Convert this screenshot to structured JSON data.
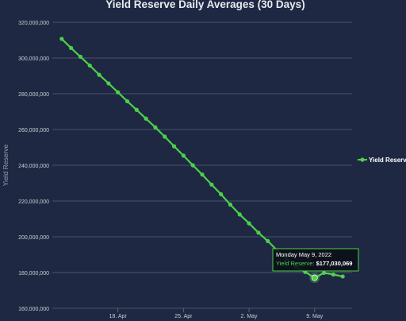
{
  "chart_data": {
    "type": "line",
    "title": "Yield Reserve Daily Averages (30 Days)",
    "ylabel": "Yield Reserve",
    "xlabel": "",
    "ylim": [
      160000000,
      320000000
    ],
    "yticks": [
      160000000,
      180000000,
      200000000,
      220000000,
      240000000,
      260000000,
      280000000,
      300000000,
      320000000
    ],
    "ytick_labels": [
      "160,000,000",
      "180,000,000",
      "200,000,000",
      "220,000,000",
      "240,000,000",
      "260,000,000",
      "280,000,000",
      "300,000,000",
      "320,000,000"
    ],
    "xticks": [
      {
        "date": "2022-04-18",
        "label": "18. Apr"
      },
      {
        "date": "2022-04-25",
        "label": "25. Apr"
      },
      {
        "date": "2022-05-02",
        "label": "2. May"
      },
      {
        "date": "2022-05-09",
        "label": "9. May"
      }
    ],
    "xlim": [
      "2022-04-11",
      "2022-05-13"
    ],
    "grid": true,
    "legend_position": "right",
    "series": [
      {
        "name": "Yield Reserve",
        "color": "#4cd04c",
        "x": [
          "2022-04-12",
          "2022-04-13",
          "2022-04-14",
          "2022-04-15",
          "2022-04-16",
          "2022-04-17",
          "2022-04-18",
          "2022-04-19",
          "2022-04-20",
          "2022-04-21",
          "2022-04-22",
          "2022-04-23",
          "2022-04-24",
          "2022-04-25",
          "2022-04-26",
          "2022-04-27",
          "2022-04-28",
          "2022-04-29",
          "2022-04-30",
          "2022-05-01",
          "2022-05-02",
          "2022-05-03",
          "2022-05-04",
          "2022-05-05",
          "2022-05-06",
          "2022-05-07",
          "2022-05-08",
          "2022-05-09",
          "2022-05-10",
          "2022-05-11",
          "2022-05-12"
        ],
        "values": [
          310700000,
          305600000,
          300700000,
          295800000,
          290600000,
          285800000,
          280800000,
          275800000,
          271000000,
          266100000,
          261200000,
          256000000,
          250600000,
          245400000,
          240000000,
          234800000,
          229200000,
          223800000,
          218000000,
          212500000,
          207500000,
          202300000,
          197600000,
          192400000,
          187600000,
          183200000,
          180300000,
          177030069,
          179800000,
          178900000,
          177800000
        ]
      }
    ],
    "tooltip": {
      "date_label": "Monday May 9, 2022",
      "series_label": "Yield Reserve",
      "value_label": "$177,030,069",
      "highlight_date": "2022-05-09",
      "highlight_value": 177030069
    },
    "colors": {
      "background": "#1f2842",
      "grid": "#5a6178",
      "text": "#c8ccd6",
      "line": "#4cd04c",
      "tooltip_bg": "#0c0f18"
    }
  }
}
